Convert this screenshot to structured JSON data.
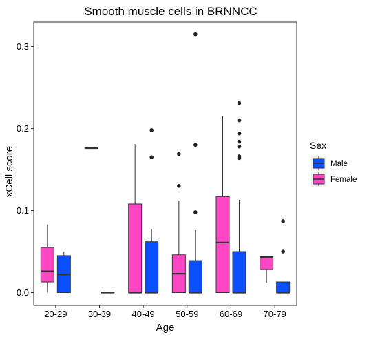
{
  "chart_data": {
    "type": "boxplot",
    "title": "Smooth muscle cells in BRNNCC",
    "xlabel": "Age",
    "ylabel": "xCell score",
    "categories": [
      "20-29",
      "30-39",
      "40-49",
      "50-59",
      "60-69",
      "70-79"
    ],
    "yticks": [
      "0.0",
      "0.1",
      "0.2",
      "0.3"
    ],
    "ylim": [
      -0.015,
      0.335
    ],
    "grid": false,
    "legend": {
      "title": "Sex",
      "position": "right",
      "entries": [
        {
          "label": "Male",
          "color": "#0b4fff"
        },
        {
          "label": "Female",
          "color": "#ff47c6"
        }
      ]
    },
    "series": [
      {
        "name": "Female",
        "color": "#ff47c6",
        "boxes": [
          {
            "category": "20-29",
            "whisker_low": 0.0,
            "q1": 0.013,
            "median": 0.026,
            "q3": 0.055,
            "whisker_high": 0.083,
            "outliers": []
          },
          {
            "category": "30-39",
            "whisker_low": 0.176,
            "q1": 0.176,
            "median": 0.176,
            "q3": 0.176,
            "whisker_high": 0.176,
            "outliers": []
          },
          {
            "category": "40-49",
            "whisker_low": 0.0,
            "q1": 0.0,
            "median": 0.0,
            "q3": 0.108,
            "whisker_high": 0.181,
            "outliers": []
          },
          {
            "category": "50-59",
            "whisker_low": 0.0,
            "q1": 0.0,
            "median": 0.023,
            "q3": 0.046,
            "whisker_high": 0.112,
            "outliers": [
              0.13,
              0.169
            ]
          },
          {
            "category": "60-69",
            "whisker_low": 0.0,
            "q1": 0.0,
            "median": 0.061,
            "q3": 0.117,
            "whisker_high": 0.215,
            "outliers": []
          },
          {
            "category": "70-79",
            "whisker_low": 0.012,
            "q1": 0.028,
            "median": 0.043,
            "q3": 0.044,
            "whisker_high": 0.044,
            "outliers": []
          }
        ]
      },
      {
        "name": "Male",
        "color": "#0b4fff",
        "boxes": [
          {
            "category": "20-29",
            "whisker_low": 0.0,
            "q1": 0.0,
            "median": 0.022,
            "q3": 0.045,
            "whisker_high": 0.05,
            "outliers": []
          },
          {
            "category": "30-39",
            "whisker_low": 0.0,
            "q1": 0.0,
            "median": 0.0,
            "q3": 0.0,
            "whisker_high": 0.0,
            "outliers": []
          },
          {
            "category": "40-49",
            "whisker_low": 0.0,
            "q1": 0.0,
            "median": 0.0,
            "q3": 0.062,
            "whisker_high": 0.077,
            "outliers": [
              0.165,
              0.198
            ]
          },
          {
            "category": "50-59",
            "whisker_low": 0.0,
            "q1": 0.0,
            "median": 0.0,
            "q3": 0.039,
            "whisker_high": 0.076,
            "outliers": [
              0.098,
              0.18,
              0.315
            ]
          },
          {
            "category": "60-69",
            "whisker_low": 0.0,
            "q1": 0.0,
            "median": 0.0,
            "q3": 0.05,
            "whisker_high": 0.113,
            "outliers": [
              0.164,
              0.166,
              0.178,
              0.184,
              0.194,
              0.21,
              0.231
            ]
          },
          {
            "category": "70-79",
            "whisker_low": 0.0,
            "q1": 0.0,
            "median": 0.0,
            "q3": 0.013,
            "whisker_high": 0.013,
            "outliers": [
              0.05,
              0.087
            ]
          }
        ]
      }
    ]
  }
}
